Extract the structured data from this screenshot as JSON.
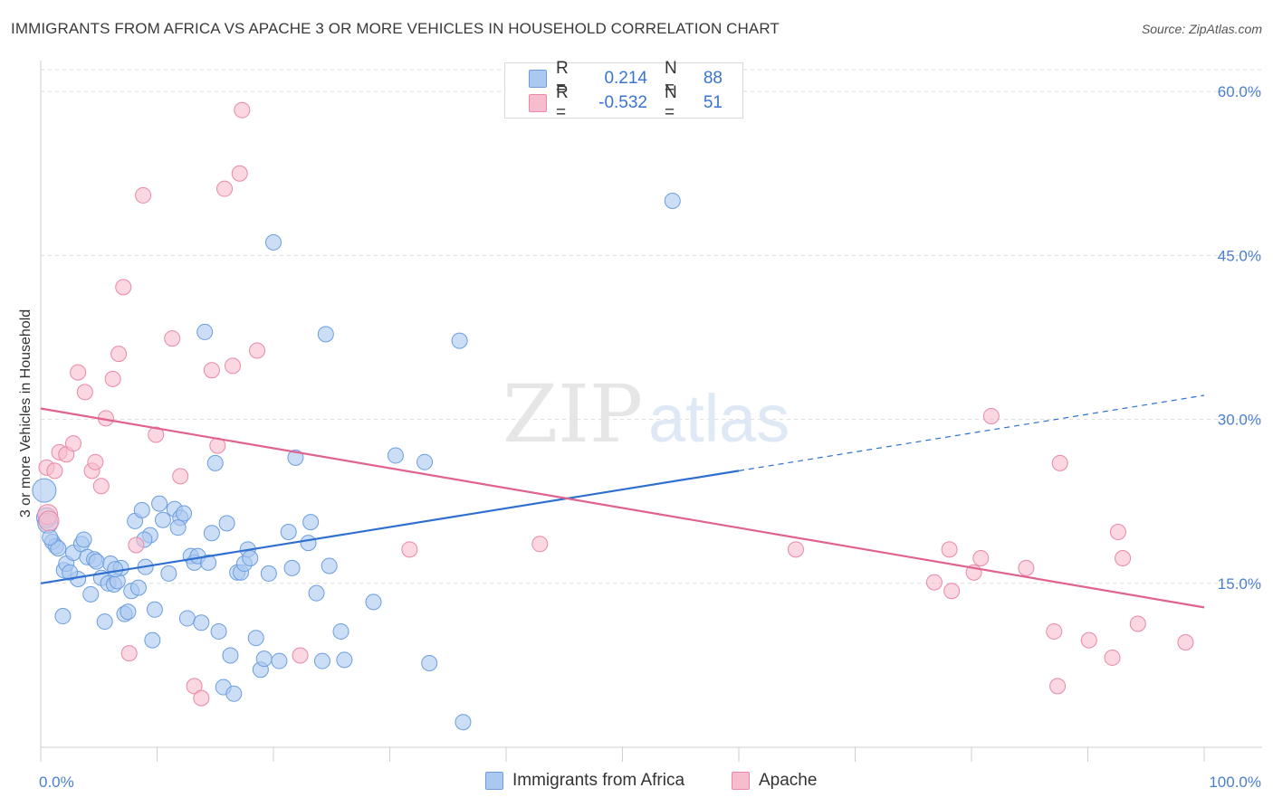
{
  "title": "IMMIGRANTS FROM AFRICA VS APACHE 3 OR MORE VEHICLES IN HOUSEHOLD CORRELATION CHART",
  "source": "Source: ZipAtlas.com",
  "legend": {
    "rows": [
      {
        "r_label": "R =",
        "r_value": "0.214",
        "n_label": "N =",
        "n_value": "88"
      },
      {
        "r_label": "R =",
        "r_value": "-0.532",
        "n_label": "N =",
        "n_value": "51"
      }
    ]
  },
  "colors": {
    "blue_fill": "#aac8f0",
    "blue_stroke": "#6b9de0",
    "blue_line": "#2f6fd0",
    "pink_fill": "#f7bccd",
    "pink_stroke": "#ea88a6",
    "pink_line": "#e0628e",
    "grid": "#dcdcdc",
    "tick_text": "#4a7fd0"
  },
  "chart_data": {
    "type": "scatter",
    "title": "IMMIGRANTS FROM AFRICA VS APACHE 3 OR MORE VEHICLES IN HOUSEHOLD CORRELATION CHART",
    "xlabel": "",
    "ylabel": "3 or more Vehicles in Household",
    "xlim": [
      0,
      100
    ],
    "ylim": [
      0,
      62
    ],
    "x_tick_labels": [
      "0.0%",
      "100.0%"
    ],
    "y_ticks": [
      15,
      30,
      45,
      60
    ],
    "y_tick_labels": [
      "15.0%",
      "30.0%",
      "45.0%",
      "60.0%"
    ],
    "grid": true,
    "legend_position": "bottom",
    "series": [
      {
        "name": "Immigrants from Africa",
        "color": "#aac8f0",
        "trend": {
          "x": [
            0,
            60
          ],
          "y": [
            15.0,
            25.3
          ],
          "dashed_to": [
            100,
            32.2
          ]
        },
        "points": [
          [
            0.3,
            23.5
          ],
          [
            0.5,
            21.0
          ],
          [
            0.6,
            20.5
          ],
          [
            1.0,
            18.8
          ],
          [
            1.3,
            18.4
          ],
          [
            1.5,
            18.2
          ],
          [
            2.0,
            16.2
          ],
          [
            2.2,
            16.8
          ],
          [
            1.9,
            12.0
          ],
          [
            2.8,
            17.8
          ],
          [
            3.2,
            15.4
          ],
          [
            3.5,
            18.6
          ],
          [
            3.7,
            19.0
          ],
          [
            4.0,
            17.4
          ],
          [
            4.3,
            14.0
          ],
          [
            4.6,
            17.2
          ],
          [
            4.8,
            17.0
          ],
          [
            5.2,
            15.5
          ],
          [
            5.5,
            11.5
          ],
          [
            5.8,
            15.0
          ],
          [
            6.0,
            16.8
          ],
          [
            6.3,
            14.9
          ],
          [
            6.6,
            15.2
          ],
          [
            6.9,
            16.4
          ],
          [
            7.2,
            12.2
          ],
          [
            7.5,
            12.4
          ],
          [
            7.8,
            14.3
          ],
          [
            8.1,
            20.7
          ],
          [
            8.4,
            14.6
          ],
          [
            8.7,
            21.7
          ],
          [
            9.0,
            16.5
          ],
          [
            9.4,
            19.4
          ],
          [
            9.8,
            12.6
          ],
          [
            9.6,
            9.8
          ],
          [
            10.2,
            22.3
          ],
          [
            10.5,
            20.8
          ],
          [
            11.0,
            15.9
          ],
          [
            11.5,
            21.8
          ],
          [
            12.0,
            21.0
          ],
          [
            12.3,
            21.4
          ],
          [
            12.6,
            11.8
          ],
          [
            12.9,
            17.5
          ],
          [
            13.2,
            16.9
          ],
          [
            13.5,
            17.5
          ],
          [
            13.8,
            11.4
          ],
          [
            14.1,
            38.0
          ],
          [
            14.4,
            16.9
          ],
          [
            14.7,
            19.6
          ],
          [
            15.0,
            26.0
          ],
          [
            15.3,
            10.6
          ],
          [
            15.7,
            5.5
          ],
          [
            16.0,
            20.5
          ],
          [
            16.3,
            8.4
          ],
          [
            16.6,
            4.9
          ],
          [
            16.9,
            16.0
          ],
          [
            17.2,
            16.0
          ],
          [
            17.5,
            16.8
          ],
          [
            17.8,
            18.1
          ],
          [
            18.5,
            10.0
          ],
          [
            18.9,
            7.1
          ],
          [
            19.2,
            8.1
          ],
          [
            19.6,
            15.9
          ],
          [
            20.0,
            46.2
          ],
          [
            20.5,
            7.9
          ],
          [
            21.3,
            19.7
          ],
          [
            21.9,
            26.5
          ],
          [
            23.0,
            18.7
          ],
          [
            23.2,
            20.6
          ],
          [
            23.7,
            14.1
          ],
          [
            24.2,
            7.9
          ],
          [
            24.5,
            37.8
          ],
          [
            24.8,
            16.6
          ],
          [
            25.8,
            10.6
          ],
          [
            26.1,
            8.0
          ],
          [
            28.6,
            13.3
          ],
          [
            30.5,
            26.7
          ],
          [
            33.0,
            26.1
          ],
          [
            33.4,
            7.7
          ],
          [
            36.0,
            37.2
          ],
          [
            36.3,
            2.3
          ],
          [
            54.3,
            50.0
          ],
          [
            0.8,
            19.2
          ],
          [
            2.5,
            16.0
          ],
          [
            6.4,
            16.3
          ],
          [
            8.9,
            19.0
          ],
          [
            11.8,
            20.1
          ],
          [
            18.0,
            17.3
          ],
          [
            21.6,
            16.4
          ]
        ]
      },
      {
        "name": "Apache",
        "color": "#f7bccd",
        "trend": {
          "x": [
            0,
            100
          ],
          "y": [
            31.0,
            12.8
          ]
        },
        "points": [
          [
            0.5,
            25.6
          ],
          [
            0.6,
            21.3
          ],
          [
            0.7,
            20.7
          ],
          [
            1.2,
            25.3
          ],
          [
            1.6,
            27.0
          ],
          [
            2.2,
            26.8
          ],
          [
            2.8,
            27.8
          ],
          [
            3.2,
            34.3
          ],
          [
            3.8,
            32.5
          ],
          [
            4.4,
            25.3
          ],
          [
            4.7,
            26.1
          ],
          [
            5.2,
            23.9
          ],
          [
            5.6,
            30.1
          ],
          [
            6.2,
            33.7
          ],
          [
            6.7,
            36.0
          ],
          [
            7.1,
            42.1
          ],
          [
            7.6,
            8.6
          ],
          [
            8.2,
            18.5
          ],
          [
            8.8,
            50.5
          ],
          [
            9.9,
            28.6
          ],
          [
            11.3,
            37.4
          ],
          [
            12.0,
            24.8
          ],
          [
            13.2,
            5.6
          ],
          [
            13.8,
            4.5
          ],
          [
            14.7,
            34.5
          ],
          [
            15.2,
            27.6
          ],
          [
            15.8,
            51.1
          ],
          [
            16.5,
            34.9
          ],
          [
            17.1,
            52.5
          ],
          [
            17.3,
            58.3
          ],
          [
            18.6,
            36.3
          ],
          [
            22.3,
            8.4
          ],
          [
            31.7,
            18.1
          ],
          [
            42.9,
            18.6
          ],
          [
            64.9,
            18.1
          ],
          [
            76.8,
            15.1
          ],
          [
            78.1,
            18.1
          ],
          [
            78.3,
            14.3
          ],
          [
            80.2,
            16.0
          ],
          [
            80.8,
            17.3
          ],
          [
            81.7,
            30.3
          ],
          [
            84.7,
            16.4
          ],
          [
            87.1,
            10.6
          ],
          [
            87.4,
            5.6
          ],
          [
            87.6,
            26.0
          ],
          [
            90.1,
            9.8
          ],
          [
            92.1,
            8.2
          ],
          [
            92.6,
            19.7
          ],
          [
            93.0,
            17.3
          ],
          [
            94.3,
            11.3
          ],
          [
            98.4,
            9.6
          ]
        ]
      }
    ]
  },
  "bottom_legend": {
    "series1": "Immigrants from Africa",
    "series2": "Apache"
  }
}
